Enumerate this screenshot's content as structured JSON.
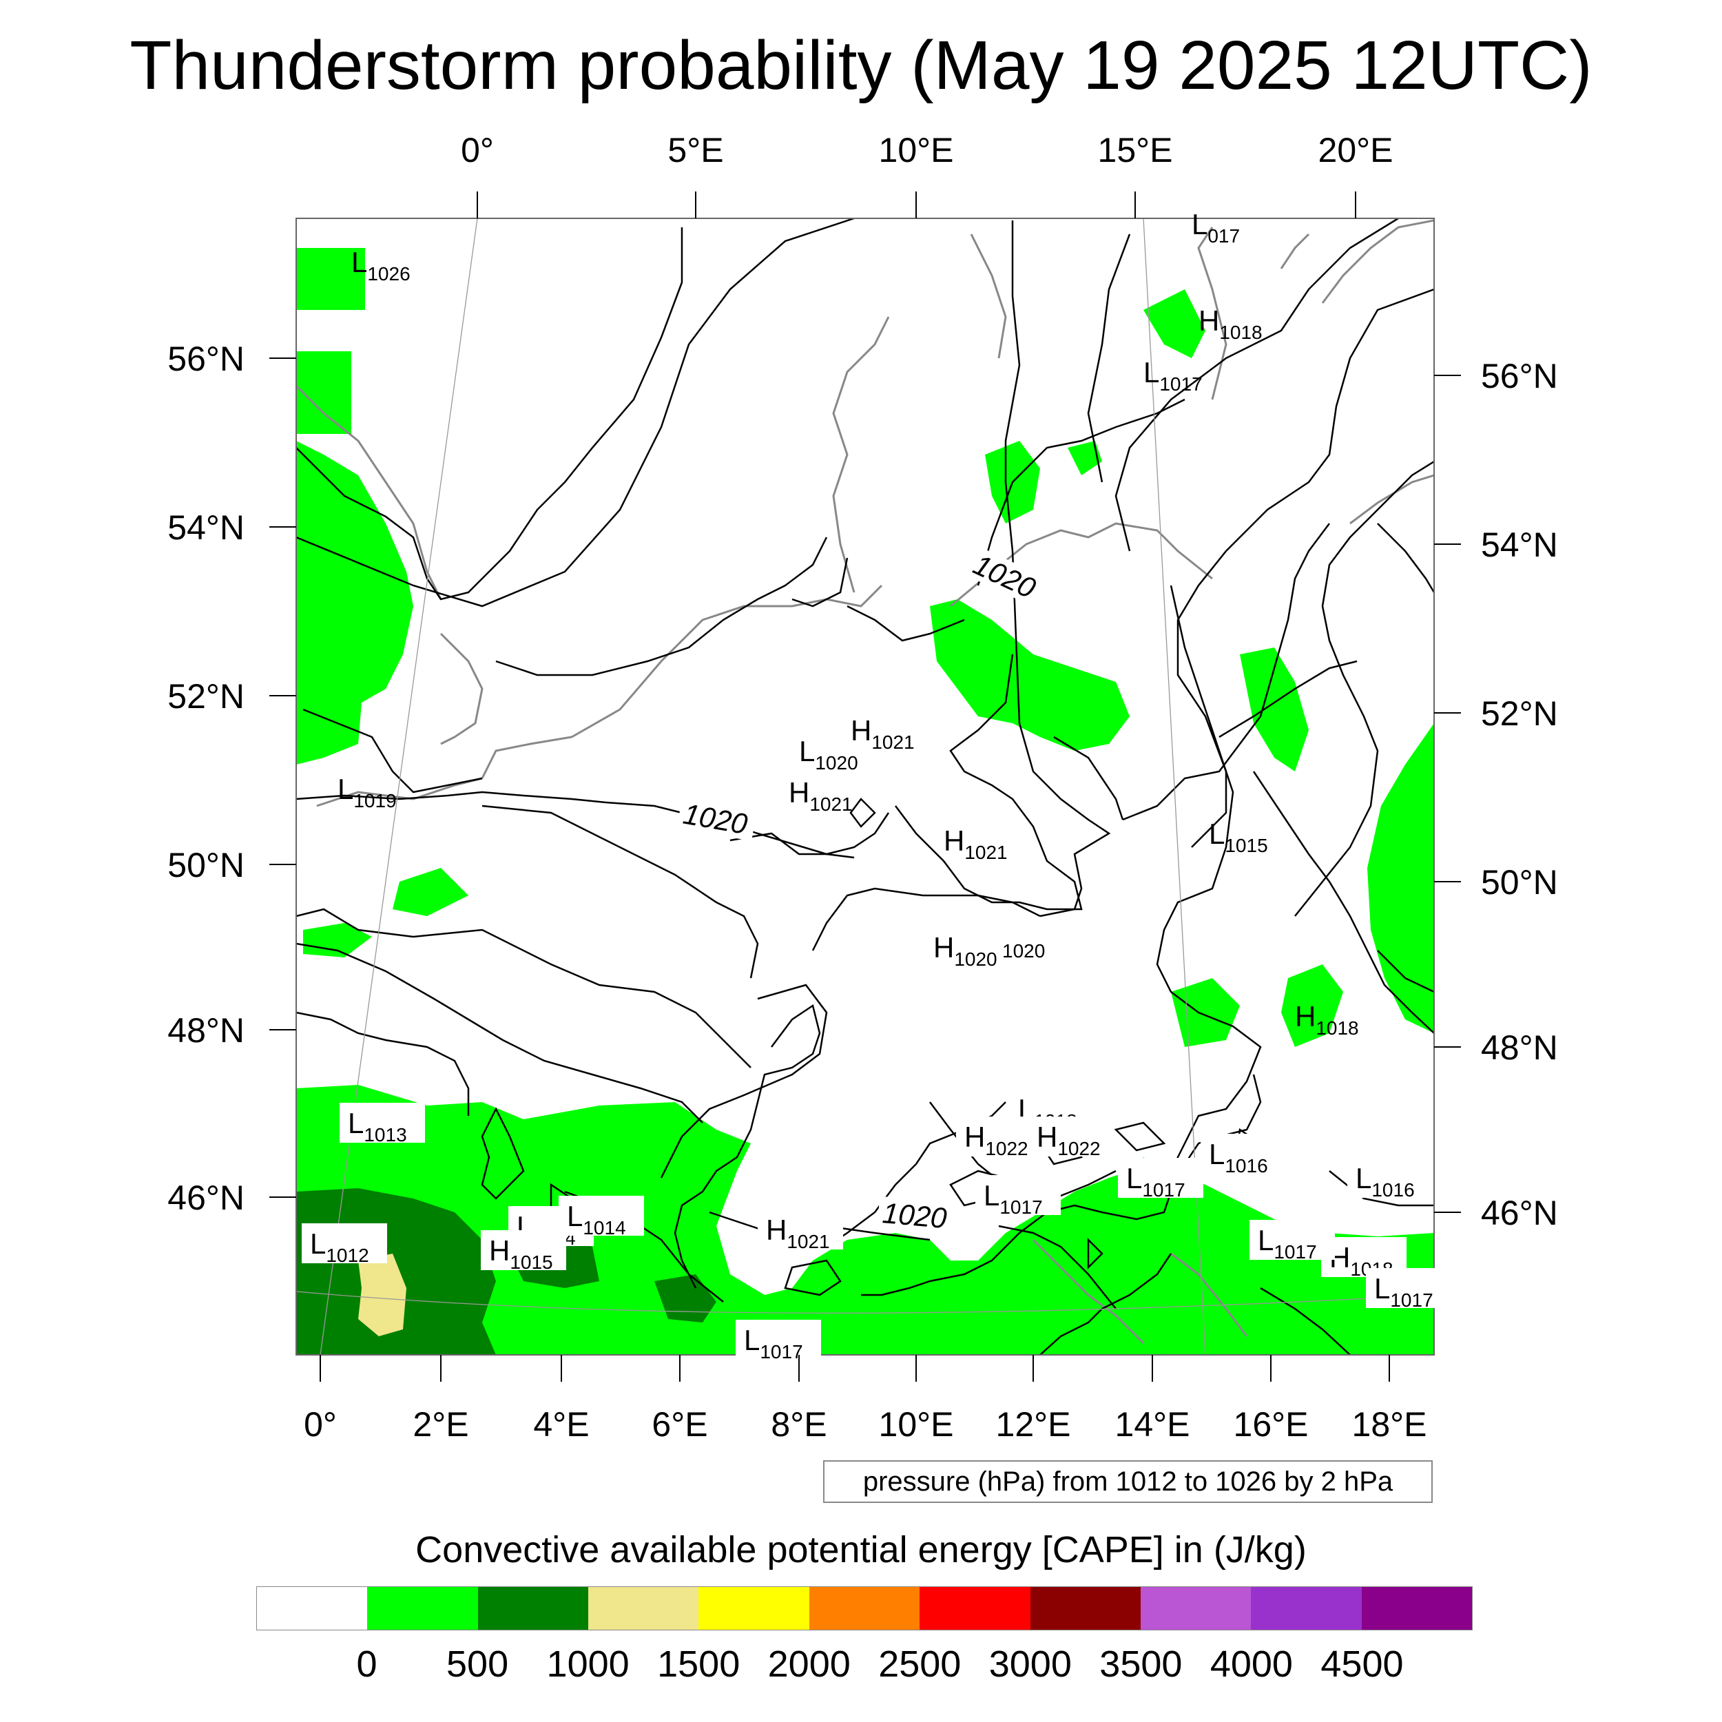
{
  "title": "Thunderstorm probability (May 19 2025 12UTC)",
  "top_lon_labels": [
    "0°",
    "5°E",
    "10°E",
    "15°E",
    "20°E"
  ],
  "bottom_lon_labels": [
    "0°",
    "2°E",
    "4°E",
    "6°E",
    "8°E",
    "10°E",
    "12°E",
    "14°E",
    "16°E",
    "18°E"
  ],
  "left_lat_labels": [
    "56°N",
    "54°N",
    "52°N",
    "50°N",
    "48°N",
    "46°N"
  ],
  "right_lat_labels": [
    "56°N",
    "54°N",
    "52°N",
    "50°N",
    "48°N",
    "46°N"
  ],
  "contour_label": "1020",
  "pressure_centers": [
    {
      "type": "L",
      "value": "1026"
    },
    {
      "type": "L",
      "value": "017"
    },
    {
      "type": "H",
      "value": "1018"
    },
    {
      "type": "L",
      "value": "1017"
    },
    {
      "type": "L",
      "value": "1019"
    },
    {
      "type": "L",
      "value": "1020"
    },
    {
      "type": "H",
      "value": "1021"
    },
    {
      "type": "H",
      "value": "1021"
    },
    {
      "type": "H",
      "value": "1021"
    },
    {
      "type": "L",
      "value": "1015"
    },
    {
      "type": "H",
      "value": "1020"
    },
    {
      "type": "H",
      "value": "1018"
    },
    {
      "type": "L",
      "value": "1013"
    },
    {
      "type": "L",
      "value": "1018"
    },
    {
      "type": "H",
      "value": "1022"
    },
    {
      "type": "H",
      "value": "1022"
    },
    {
      "type": "L",
      "value": "1016"
    },
    {
      "type": "L",
      "value": "1017"
    },
    {
      "type": "L",
      "value": "1017"
    },
    {
      "type": "L",
      "value": "1012"
    },
    {
      "type": "L",
      "value": "1014"
    },
    {
      "type": "L",
      "value": "1014"
    },
    {
      "type": "H",
      "value": "1015"
    },
    {
      "type": "H",
      "value": "1021"
    },
    {
      "type": "L",
      "value": "1017"
    },
    {
      "type": "H",
      "value": "1018"
    },
    {
      "type": "L",
      "value": "1016"
    },
    {
      "type": "L",
      "value": "1017"
    },
    {
      "type": "L",
      "value": "1017"
    }
  ],
  "contour_value_labels": [
    "1020",
    "1020",
    "1020",
    "1020"
  ],
  "pressure_note": "pressure (hPa) from 1012 to 1026 by 2 hPa",
  "colorbar": {
    "title": "Convective available potential energy [CAPE] in (J/kg)",
    "colors": [
      "#ffffff",
      "#00ff00",
      "#008000",
      "#f0e68c",
      "#ffff00",
      "#ff8000",
      "#ff0000",
      "#8b0000",
      "#ba55d3",
      "#9932cc",
      "#8b008b"
    ],
    "labels": [
      "0",
      "500",
      "1000",
      "1500",
      "2000",
      "2500",
      "3000",
      "3500",
      "4000",
      "4500"
    ]
  }
}
